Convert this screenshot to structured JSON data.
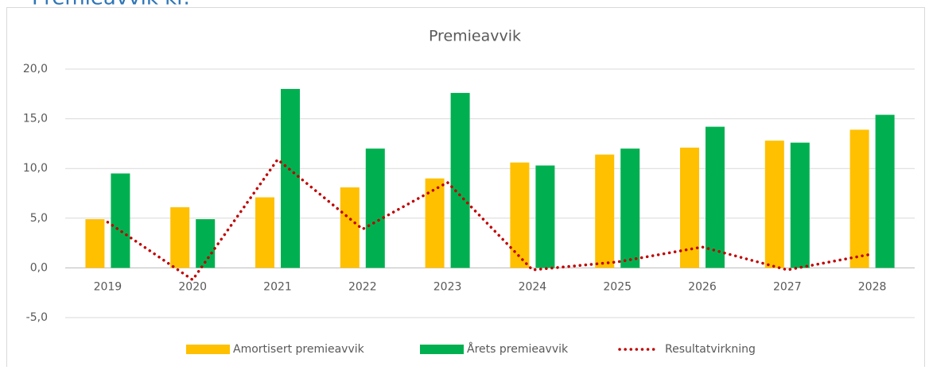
{
  "heading": "Premieavvik kr.",
  "chart_data": {
    "type": "bar",
    "title": "Premieavvik",
    "categories": [
      "2019",
      "2020",
      "2021",
      "2022",
      "2023",
      "2024",
      "2025",
      "2026",
      "2027",
      "2028"
    ],
    "series": [
      {
        "name": "Amortisert premieavvik",
        "color": "#ffc000",
        "values": [
          4.9,
          6.1,
          7.1,
          8.1,
          9.0,
          10.6,
          11.4,
          12.1,
          12.8,
          13.9
        ]
      },
      {
        "name": "Årets premieavvik",
        "color": "#00b050",
        "values": [
          9.5,
          4.9,
          18.0,
          12.0,
          17.6,
          10.3,
          12.0,
          14.2,
          12.6,
          15.4
        ]
      },
      {
        "name": "Resultatvirkning",
        "color": "#c00000",
        "type": "line",
        "values": [
          4.6,
          -1.2,
          10.9,
          3.9,
          8.6,
          -0.2,
          0.6,
          2.1,
          -0.2,
          1.4
        ]
      }
    ],
    "ylim": [
      -5,
      20
    ],
    "yticks": [
      {
        "value": -5,
        "label": "-5,0"
      },
      {
        "value": 0,
        "label": "0,0"
      },
      {
        "value": 5,
        "label": "5,0"
      },
      {
        "value": 10,
        "label": "10,0"
      },
      {
        "value": 15,
        "label": "15,0"
      },
      {
        "value": 20,
        "label": "20,0"
      }
    ],
    "grid": true,
    "legend": "bottom"
  }
}
